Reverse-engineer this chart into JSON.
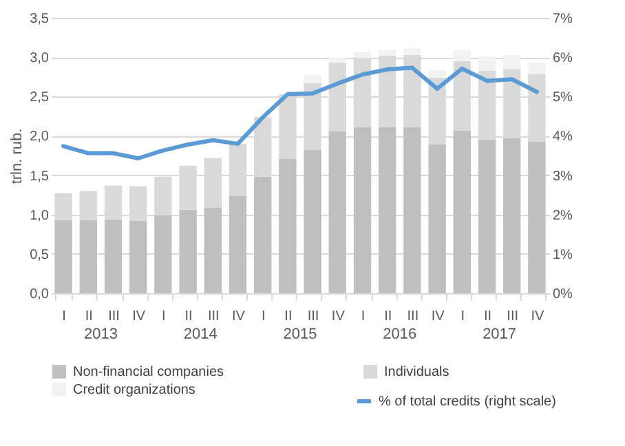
{
  "chart_data": {
    "type": "bar",
    "stacked": true,
    "ylabel": "trln. rub.",
    "categories": [
      "I",
      "II",
      "III",
      "IV",
      "I",
      "II",
      "III",
      "IV",
      "I",
      "II",
      "III",
      "IV",
      "I",
      "II",
      "III",
      "IV",
      "I",
      "II",
      "III",
      "IV"
    ],
    "series": [
      {
        "name": "Non-financial companies",
        "color": "#bfbfbf",
        "values": [
          0.93,
          0.93,
          0.94,
          0.92,
          0.99,
          1.06,
          1.09,
          1.24,
          1.48,
          1.71,
          1.82,
          2.06,
          2.11,
          2.11,
          2.11,
          1.89,
          2.07,
          1.95,
          1.97,
          1.93
        ]
      },
      {
        "name": "Individuals",
        "color": "#d9d9d9",
        "values": [
          0.34,
          0.37,
          0.43,
          0.44,
          0.49,
          0.56,
          0.63,
          0.66,
          0.76,
          0.82,
          0.85,
          0.87,
          0.88,
          0.91,
          0.92,
          0.85,
          0.88,
          0.88,
          0.88,
          0.86
        ]
      },
      {
        "name": "Credit organizations",
        "color": "#f2f2f2",
        "values": [
          null,
          null,
          null,
          null,
          null,
          null,
          null,
          null,
          null,
          null,
          0.1,
          0.06,
          0.08,
          0.07,
          0.08,
          0.09,
          0.14,
          0.18,
          0.18,
          0.14
        ]
      },
      {
        "name": "% of total credits (right scale)",
        "color": "#5b9bd5",
        "type": "line",
        "axis": "y2",
        "values": [
          3.74,
          3.56,
          3.56,
          3.43,
          3.63,
          3.78,
          3.89,
          3.8,
          4.47,
          5.06,
          5.08,
          5.33,
          5.56,
          5.69,
          5.73,
          5.2,
          5.71,
          5.4,
          5.44,
          5.12
        ]
      }
    ],
    "ylim": [
      0,
      3.5
    ],
    "yticks": [
      {
        "value": 0,
        "label": "0,0"
      },
      {
        "value": 0.5,
        "label": "0,5"
      },
      {
        "value": 1,
        "label": "1,0"
      },
      {
        "value": 1.5,
        "label": "1,5"
      },
      {
        "value": 2,
        "label": "2,0"
      },
      {
        "value": 2.5,
        "label": "2,5"
      },
      {
        "value": 3,
        "label": "3,0"
      },
      {
        "value": 3.5,
        "label": "3,5"
      }
    ],
    "y2lim": [
      0,
      7
    ],
    "y2ticks": [
      {
        "value": 0,
        "label": "0%"
      },
      {
        "value": 1,
        "label": "1%"
      },
      {
        "value": 2,
        "label": "2%"
      },
      {
        "value": 3,
        "label": "3%"
      },
      {
        "value": 4,
        "label": "4%"
      },
      {
        "value": 5,
        "label": "5%"
      },
      {
        "value": 6,
        "label": "6%"
      },
      {
        "value": 7,
        "label": "7%"
      }
    ],
    "annotations": [
      "2013",
      "2014",
      "2015",
      "2016",
      "2017"
    ],
    "grid": "y",
    "legend": "bottom"
  }
}
